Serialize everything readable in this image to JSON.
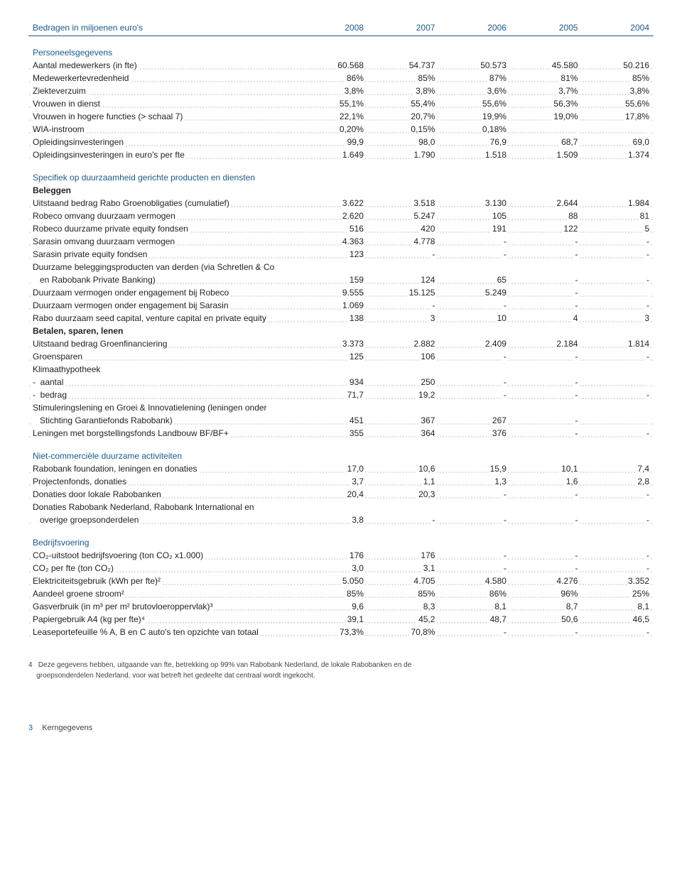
{
  "header": {
    "title": "Bedragen in miljoenen euro's",
    "years": [
      "2008",
      "2007",
      "2006",
      "2005",
      "2004"
    ]
  },
  "sections": [
    {
      "title": "Personeelsgegevens",
      "rows": [
        {
          "label": "Aantal medewerkers (in fte)",
          "v": [
            "60.568",
            "54.737",
            "50.573",
            "45.580",
            "50.216"
          ]
        },
        {
          "label": "Medewerkertevredenheid",
          "v": [
            "86%",
            "85%",
            "87%",
            "81%",
            "85%"
          ]
        },
        {
          "label": "Ziekteverzuim",
          "v": [
            "3,8%",
            "3,8%",
            "3,6%",
            "3,7%",
            "3,8%"
          ]
        },
        {
          "label": "Vrouwen in dienst",
          "v": [
            "55,1%",
            "55,4%",
            "55,6%",
            "56,3%",
            "55,6%"
          ]
        },
        {
          "label": "Vrouwen in hogere functies (> schaal 7)",
          "v": [
            "22,1%",
            "20,7%",
            "19,9%",
            "19,0%",
            "17,8%"
          ]
        },
        {
          "label": "WIA-instroom",
          "v": [
            "0,20%",
            "0,15%",
            "0,18%",
            "",
            ""
          ]
        },
        {
          "label": "Opleidingsinvesteringen",
          "v": [
            "99,9",
            "98,0",
            "76,9",
            "68,7",
            "69,0"
          ]
        },
        {
          "label": "Opleidingsinvesteringen in euro's per fte",
          "v": [
            "1.649",
            "1.790",
            "1.518",
            "1.509",
            "1.374"
          ]
        }
      ]
    },
    {
      "title": "Specifiek op duurzaamheid gerichte producten en diensten",
      "groups": [
        {
          "subtitle": "Beleggen",
          "rows": [
            {
              "label": "Uitstaand bedrag Rabo Groenobligaties (cumulatief)",
              "v": [
                "3.622",
                "3.518",
                "3.130",
                "2.644",
                "1.984"
              ]
            },
            {
              "label": "Robeco omvang duurzaam vermogen",
              "v": [
                "2.620",
                "5.247",
                "105",
                "88",
                "81"
              ]
            },
            {
              "label": "Robeco duurzame private equity fondsen",
              "v": [
                "516",
                "420",
                "191",
                "122",
                "5"
              ]
            },
            {
              "label": "Sarasin omvang duurzaam vermogen",
              "v": [
                "4.363",
                "4.778",
                "-",
                "-",
                "-"
              ]
            },
            {
              "label": "Sarasin private equity fondsen",
              "v": [
                "123",
                "-",
                "-",
                "-",
                "-"
              ]
            },
            {
              "label": "Duurzame beleggingsproducten van derden (via Schretlen & Co",
              "v": [
                "",
                "",
                "",
                "",
                ""
              ],
              "nodots": true
            },
            {
              "label": "   en Rabobank Private Banking)",
              "v": [
                "159",
                "124",
                "65",
                "-",
                "-"
              ]
            },
            {
              "label": "Duurzaam vermogen onder engagement bij Robeco",
              "v": [
                "9.555",
                "15.125",
                "5.249",
                "-",
                ""
              ]
            },
            {
              "label": "Duurzaam vermogen onder engagement bij Sarasin",
              "v": [
                "1.069",
                "-",
                "-",
                "-",
                "-"
              ]
            },
            {
              "label": "Rabo duurzaam seed capital, venture capital en private equity",
              "v": [
                "138",
                "3",
                "10",
                "4",
                "3"
              ]
            }
          ]
        },
        {
          "subtitle": "Betalen, sparen, lenen",
          "rows": [
            {
              "label": "Uitstaand bedrag Groenfinanciering",
              "v": [
                "3.373",
                "2.882",
                "2.409",
                "2.184",
                "1.814"
              ]
            },
            {
              "label": "Groensparen",
              "v": [
                "125",
                "106",
                "-",
                "-",
                "-"
              ]
            },
            {
              "label": "Klimaathypotheek",
              "v": [
                "",
                "",
                "",
                "",
                ""
              ],
              "nodots": true
            },
            {
              "label": "-  aantal",
              "v": [
                "934",
                "250",
                "-",
                "-",
                ""
              ]
            },
            {
              "label": "-  bedrag",
              "v": [
                "71,7",
                "19,2",
                "-",
                "-",
                "-"
              ]
            },
            {
              "label": "Stimuleringslening en Groei & Innovatielening (leningen onder",
              "v": [
                "",
                "",
                "",
                "",
                ""
              ],
              "nodots": true
            },
            {
              "label": "   Stichting Garantiefonds Rabobank)",
              "v": [
                "451",
                "367",
                "267",
                "-",
                ""
              ]
            },
            {
              "label": "Leningen met borgstellingsfonds Landbouw BF/BF+",
              "v": [
                "355",
                "364",
                "376",
                "-",
                "-"
              ]
            }
          ]
        }
      ]
    },
    {
      "title": "Niet-commerciële duurzame activiteiten",
      "rows": [
        {
          "label": "Rabobank foundation, leningen en donaties",
          "v": [
            "17,0",
            "10,6",
            "15,9",
            "10,1",
            "7,4"
          ]
        },
        {
          "label": "Projectenfonds, donaties",
          "v": [
            "3,7",
            "1,1",
            "1,3",
            "1,6",
            "2,8"
          ]
        },
        {
          "label": "Donaties door lokale Rabobanken",
          "v": [
            "20,4",
            "20,3",
            "-",
            "-",
            "-"
          ]
        },
        {
          "label": "Donaties Rabobank Nederland, Rabobank International en",
          "v": [
            "",
            "",
            "",
            "",
            ""
          ],
          "nodots": true
        },
        {
          "label": "   overige groepsonderdelen",
          "v": [
            "3,8",
            "-",
            "-",
            "-",
            "-"
          ]
        }
      ]
    },
    {
      "title": "Bedrijfsvoering",
      "rows": [
        {
          "label": "CO₂-uitstoot bedrijfsvoering (ton CO₂ x1.000)",
          "v": [
            "176",
            "176",
            "-",
            "-",
            "-"
          ]
        },
        {
          "label": "CO₂ per fte (ton CO₂)",
          "v": [
            "3,0",
            "3,1",
            "-",
            "-",
            "-"
          ]
        },
        {
          "label": "Elektriciteitsgebruik (kWh per fte)²",
          "v": [
            "5.050",
            "4.705",
            "4.580",
            "4.276",
            "3.352"
          ]
        },
        {
          "label": "Aandeel groene stroom²",
          "v": [
            "85%",
            "85%",
            "86%",
            "96%",
            "25%"
          ]
        },
        {
          "label": "Gasverbruik (in m³ per m² brutovloeroppervlak)³",
          "v": [
            "9,6",
            "8,3",
            "8,1",
            "8,7",
            "8,1"
          ]
        },
        {
          "label": "Papiergebruik A4 (kg per fte)⁴",
          "v": [
            "39,1",
            "45,2",
            "48,7",
            "50,6",
            "46,5"
          ]
        },
        {
          "label": "Leaseportefeuille % A, B en C auto's ten opzichte van totaal",
          "v": [
            "73,3%",
            "70,8%",
            "-",
            "-",
            "-"
          ]
        }
      ]
    }
  ],
  "footnote": {
    "num": "4",
    "text1": "Deze gegevens hebben, uitgaande van fte, betrekking op 99% van Rabobank Nederland, de lokale Rabobanken en de",
    "text2": "groepsonderdelen Nederland, voor wat betreft het gedeelte dat centraal wordt ingekocht."
  },
  "footer": {
    "page": "3",
    "section": "Kerngegevens"
  }
}
